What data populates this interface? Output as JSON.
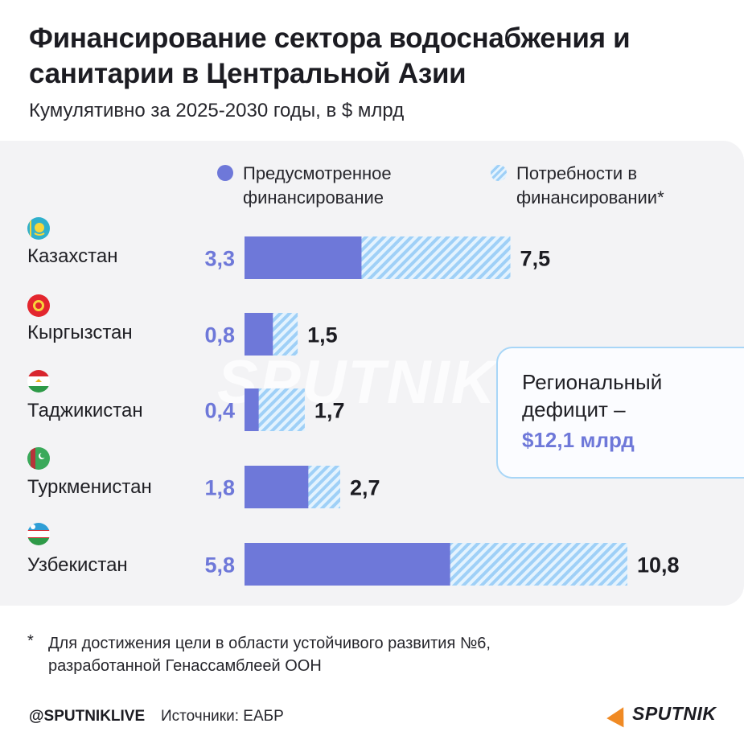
{
  "title": "Финансирование сектора водоснабжения и санитарии в Центральной Азии",
  "subtitle": "Кумулятивно за 2025-2030 годы, в $ млрд",
  "legend": {
    "planned": "Предусмотренное финансирование",
    "needs": "Потребности в финансировании*"
  },
  "watermark": "SPUTNIK",
  "callout": {
    "text": "Региональный дефицит –",
    "value": "$12,1 млрд"
  },
  "footnote": {
    "star": "*",
    "text": "Для достижения цели в области устойчивого развития №6, разработанной Генассамблеей ООН"
  },
  "footer": {
    "handle": "@SPUTNIKLIVE",
    "sources": "Источники: ЕАБР",
    "logo": "SPUTNIK"
  },
  "colors": {
    "planned": "#6e78d9",
    "needs_stripe_a": "#9fd0f7",
    "needs_stripe_b": "#e4f3fe",
    "value_label": "#6e78d9"
  },
  "flag_icons": [
    "kazakhstan-flag-icon",
    "kyrgyzstan-flag-icon",
    "tajikistan-flag-icon",
    "turkmenistan-flag-icon",
    "uzbekistan-flag-icon"
  ],
  "chart_data": {
    "type": "bar",
    "orientation": "horizontal",
    "title": "Финансирование сектора водоснабжения и санитарии в Центральной Азии",
    "xlabel": "$ млрд",
    "xlim": [
      0,
      10.8
    ],
    "categories": [
      "Казахстан",
      "Кыргызстан",
      "Таджикистан",
      "Туркменистан",
      "Узбекистан"
    ],
    "planned_labels": [
      "3,3",
      "0,8",
      "0,4",
      "1,8",
      "5,8"
    ],
    "total_labels": [
      "7,5",
      "1,5",
      "1,7",
      "2,7",
      "10,8"
    ],
    "series": [
      {
        "name": "Предусмотренное финансирование",
        "values": [
          3.3,
          0.8,
          0.4,
          1.8,
          5.8
        ]
      },
      {
        "name": "Потребности в финансировании",
        "values": [
          7.5,
          1.5,
          1.7,
          2.7,
          10.8
        ]
      }
    ],
    "legend": "top"
  }
}
